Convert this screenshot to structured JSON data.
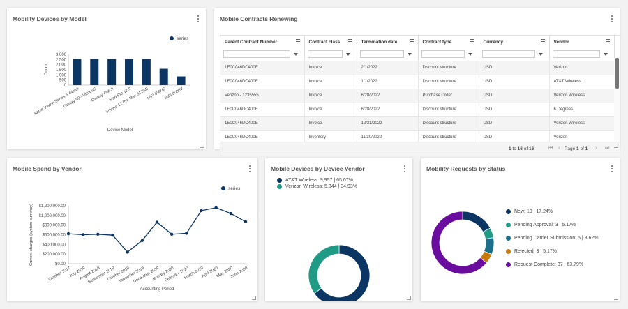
{
  "panels": {
    "devices_by_model": {
      "title": "Mobility Devices by Model",
      "chart_data": {
        "type": "bar",
        "title": "Mobility Devices by Model",
        "xlabel": "Device Model",
        "ylabel": "Count",
        "ylim": [
          0,
          3000
        ],
        "y_ticks": [
          "3,000",
          "2,500",
          "2,000",
          "1,500",
          "1,000",
          "500",
          "0"
        ],
        "legend": "series",
        "categories": [
          "Apple Watch Series 5 44mm",
          "Galaxy S20 Ultra 5G",
          "Galaxy Watch",
          "iPad Pro 12.9",
          "iPhone 12 Pro Max 512GB",
          "MiFi 8000D",
          "MiFi 8000V"
        ],
        "values": [
          2550,
          2550,
          2550,
          2550,
          2550,
          1600,
          850
        ],
        "color": "#0b3563"
      }
    },
    "contracts": {
      "title": "Mobile Contracts Renewing",
      "columns": [
        "Parent Contract Number",
        "Contract class",
        "Termination date",
        "Contract type",
        "Currency",
        "Vendor"
      ],
      "rows": [
        [
          "1E0C046DC400E",
          "Invoice",
          "2/1/2022",
          "Discount structure",
          "USD",
          "Verizon"
        ],
        [
          "1E0C046DC400E",
          "Invoice",
          "1/1/2022",
          "Discount structure",
          "USD",
          "AT&T Wireless"
        ],
        [
          "Verizon - 1235555",
          "Invoice",
          "6/28/2022",
          "Purchase Order",
          "USD",
          "Verizon Wireless"
        ],
        [
          "1E0C046DC400E",
          "Invoice",
          "6/28/2022",
          "Discount structure",
          "USD",
          "6 Degrees"
        ],
        [
          "1E0C046DC400E",
          "Invoice",
          "12/31/2022",
          "Discount structure",
          "USD",
          "Verizon Wireless"
        ],
        [
          "1E0C046DC400E",
          "Inventory",
          "11/30/2022",
          "Discount structure",
          "USD",
          "Verizon"
        ]
      ],
      "pager": {
        "from": "1",
        "to_word": "to",
        "to": "16",
        "of_word": "of",
        "total": "16",
        "page_word": "Page",
        "page": "1",
        "page_of": "of",
        "pages": "1"
      },
      "icons": {
        "first": "⏮",
        "prev": "‹",
        "next": "›",
        "last": "⏭"
      }
    },
    "spend_by_vendor": {
      "title": "Mobile Spend by Vendor",
      "chart_data": {
        "type": "line",
        "title": "Mobile Spend by Vendor",
        "xlabel": "Accounting Period",
        "ylabel": "Current charges (system currency)",
        "ylim": [
          0,
          1200000
        ],
        "y_ticks": [
          "$1,200,000.00",
          "$1,000,000.00",
          "$800,000.00",
          "$600,000.00",
          "$400,000.00",
          "$200,000.00",
          "$0.00"
        ],
        "legend": "series",
        "categories": [
          "October 2017",
          "July 2019",
          "August 2019",
          "September 2019",
          "October 2019",
          "November 2019",
          "December 2019",
          "January 2020",
          "February 2020",
          "March 2020",
          "April 2020",
          "May 2020",
          "June 2020"
        ],
        "values": [
          620000,
          600000,
          610000,
          590000,
          240000,
          480000,
          860000,
          610000,
          630000,
          1100000,
          1160000,
          1040000,
          870000
        ],
        "color": "#0b3563"
      }
    },
    "devices_by_vendor": {
      "title": "Mobile Devices by Device Vendor",
      "chart_data": {
        "type": "pie",
        "title": "Mobile Devices by Device Vendor",
        "labels": [
          "AT&T Wireless: 9,957 | 65.07%",
          "Verizon Wireless: 5,344 | 34.93%"
        ],
        "values": [
          9957,
          5344
        ],
        "colors": [
          "#0b3563",
          "#1f9a84"
        ]
      }
    },
    "requests_by_status": {
      "title": "Mobility Requests by Status",
      "chart_data": {
        "type": "pie",
        "title": "Mobility Requests by Status",
        "labels": [
          "New: 10 | 17.24%",
          "Pending Approval: 3 | 5.17%",
          "Pending Carrier Submission: 5 | 8.62%",
          "Rejected: 3 | 5.17%",
          "Request Complete: 37 | 63.79%"
        ],
        "values": [
          10,
          3,
          5,
          3,
          37
        ],
        "colors": [
          "#0b3563",
          "#1f9a84",
          "#1a6f8a",
          "#c9780a",
          "#6a0d9e"
        ]
      }
    }
  }
}
